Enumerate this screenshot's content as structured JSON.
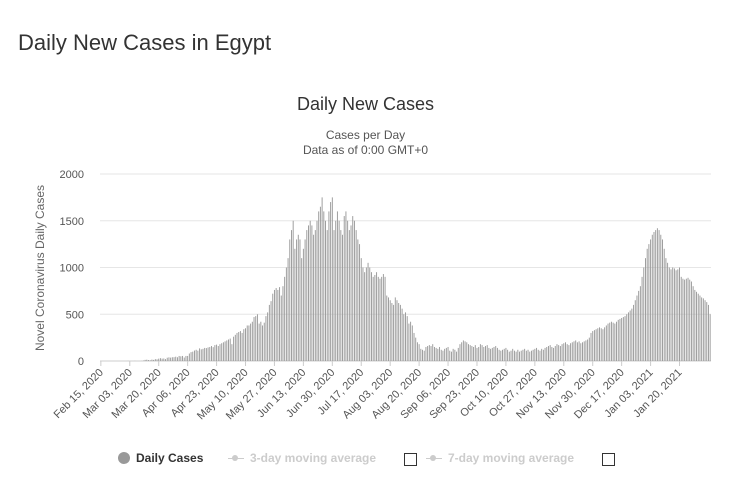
{
  "page": {
    "title": "Daily New Cases in Egypt"
  },
  "chart_data": {
    "type": "bar",
    "title": "Daily New Cases",
    "subtitle": "Cases per Day",
    "subtitle2": "Data as of 0:00 GMT+0",
    "ylabel": "Novel Coronavirus Daily Cases",
    "xlabel": "",
    "ylim": [
      0,
      2000
    ],
    "yticks": [
      0,
      500,
      1000,
      1500,
      2000
    ],
    "grid": true,
    "x_start": "Feb 15, 2020",
    "x_end": "Jan 25, 2021",
    "x_tick_labels": [
      "Feb 15, 2020",
      "Mar 03, 2020",
      "Mar 20, 2020",
      "Apr 06, 2020",
      "Apr 23, 2020",
      "May 10, 2020",
      "May 27, 2020",
      "Jun 13, 2020",
      "Jun 30, 2020",
      "Jul 17, 2020",
      "Aug 03, 2020",
      "Aug 20, 2020",
      "Sep 06, 2020",
      "Sep 23, 2020",
      "Oct 10, 2020",
      "Oct 27, 2020",
      "Nov 13, 2020",
      "Nov 30, 2020",
      "Dec 17, 2020",
      "Jan 03, 2021",
      "Jan 20, 2021"
    ],
    "series": [
      {
        "name": "Daily Cases",
        "color": "#999999",
        "values": [
          0,
          0,
          0,
          0,
          0,
          0,
          0,
          0,
          0,
          0,
          0,
          0,
          0,
          0,
          0,
          0,
          1,
          0,
          0,
          0,
          1,
          0,
          0,
          0,
          1,
          5,
          12,
          14,
          10,
          8,
          15,
          12,
          20,
          18,
          25,
          30,
          25,
          27,
          20,
          35,
          39,
          36,
          40,
          41,
          46,
          40,
          54,
          50,
          54,
          37,
          54,
          54,
          80,
          95,
          100,
          112,
          120,
          110,
          135,
          125,
          130,
          140,
          138,
          145,
          150,
          160,
          148,
          170,
          175,
          160,
          180,
          190,
          200,
          210,
          220,
          230,
          240,
          180,
          260,
          280,
          300,
          310,
          320,
          300,
          340,
          350,
          380,
          380,
          400,
          420,
          470,
          480,
          500,
          400,
          420,
          380,
          410,
          480,
          520,
          600,
          640,
          720,
          760,
          780,
          760,
          790,
          700,
          800,
          900,
          1000,
          1100,
          1300,
          1400,
          1500,
          1200,
          1300,
          1350,
          1300,
          1100,
          1200,
          1300,
          1400,
          1450,
          1500,
          1450,
          1350,
          1400,
          1500,
          1600,
          1650,
          1750,
          1600,
          1500,
          1400,
          1600,
          1700,
          1750,
          1400,
          1500,
          1600,
          1500,
          1400,
          1350,
          1550,
          1600,
          1500,
          1400,
          1450,
          1550,
          1500,
          1400,
          1300,
          1250,
          1100,
          1000,
          950,
          1000,
          1050,
          1000,
          950,
          900,
          920,
          950,
          900,
          880,
          900,
          930,
          900,
          700,
          680,
          650,
          620,
          600,
          680,
          650,
          620,
          600,
          560,
          500,
          520,
          480,
          400,
          420,
          380,
          300,
          250,
          200,
          180,
          130,
          120,
          110,
          150,
          160,
          170,
          160,
          180,
          150,
          140,
          130,
          150,
          120,
          110,
          130,
          140,
          150,
          110,
          100,
          130,
          120,
          100,
          140,
          180,
          200,
          220,
          210,
          200,
          180,
          170,
          160,
          150,
          170,
          140,
          150,
          180,
          170,
          150,
          160,
          170,
          140,
          130,
          140,
          150,
          160,
          140,
          120,
          110,
          120,
          130,
          140,
          120,
          100,
          110,
          130,
          110,
          100,
          120,
          100,
          110,
          120,
          130,
          110,
          120,
          100,
          110,
          120,
          130,
          140,
          120,
          110,
          130,
          120,
          140,
          150,
          160,
          170,
          150,
          140,
          160,
          180,
          170,
          160,
          180,
          190,
          200,
          180,
          170,
          190,
          200,
          210,
          220,
          200,
          210,
          190,
          200,
          210,
          220,
          230,
          250,
          300,
          320,
          330,
          340,
          350,
          360,
          350,
          340,
          360,
          380,
          400,
          410,
          420,
          410,
          400,
          420,
          440,
          450,
          460,
          470,
          480,
          500,
          520,
          540,
          560,
          600,
          650,
          700,
          750,
          800,
          900,
          1000,
          1100,
          1200,
          1250,
          1300,
          1350,
          1380,
          1400,
          1420,
          1400,
          1350,
          1300,
          1200,
          1100,
          1050,
          1000,
          980,
          1000,
          990,
          970,
          980,
          1000,
          900,
          880,
          870,
          880,
          890,
          870,
          850,
          800,
          760,
          740,
          720,
          700,
          680,
          670,
          650,
          630,
          600,
          500
        ]
      }
    ]
  },
  "legend": {
    "items": [
      {
        "label": "Daily Cases",
        "active": true
      },
      {
        "label": "3-day moving average",
        "active": false
      },
      {
        "label": "7-day moving average",
        "active": false
      }
    ]
  }
}
